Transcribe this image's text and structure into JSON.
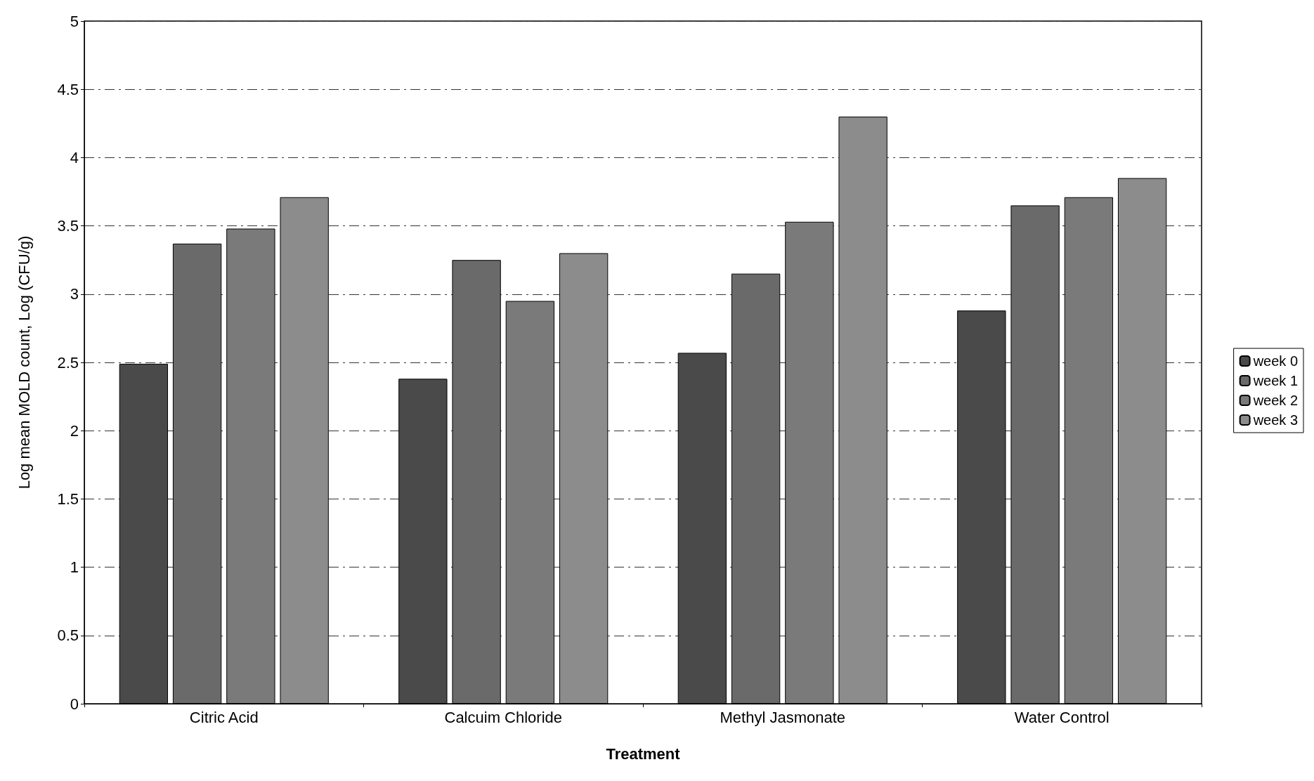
{
  "chart_data": {
    "type": "bar",
    "xlabel": "Treatment",
    "ylabel": "Log mean MOLD count, Log (CFU/g)",
    "categories": [
      "Citric Acid",
      "Calcuim Chloride",
      "Methyl Jasmonate",
      "Water Control"
    ],
    "series": [
      {
        "name": "week 0",
        "color": "#4a4a4a",
        "values": [
          2.49,
          2.38,
          2.57,
          2.88
        ]
      },
      {
        "name": "week 1",
        "color": "#6a6a6a",
        "values": [
          3.37,
          3.25,
          3.15,
          3.65
        ]
      },
      {
        "name": "week 2",
        "color": "#7a7a7a",
        "values": [
          3.48,
          2.95,
          3.53,
          3.71
        ]
      },
      {
        "name": "week 3",
        "color": "#8c8c8c",
        "values": [
          3.71,
          3.3,
          4.3,
          3.85
        ]
      }
    ],
    "ylim": [
      0,
      5
    ],
    "yticks": [
      0,
      0.5,
      1,
      1.5,
      2,
      2.5,
      3,
      3.5,
      4,
      4.5,
      5
    ],
    "grid": "y",
    "legend": "right"
  }
}
